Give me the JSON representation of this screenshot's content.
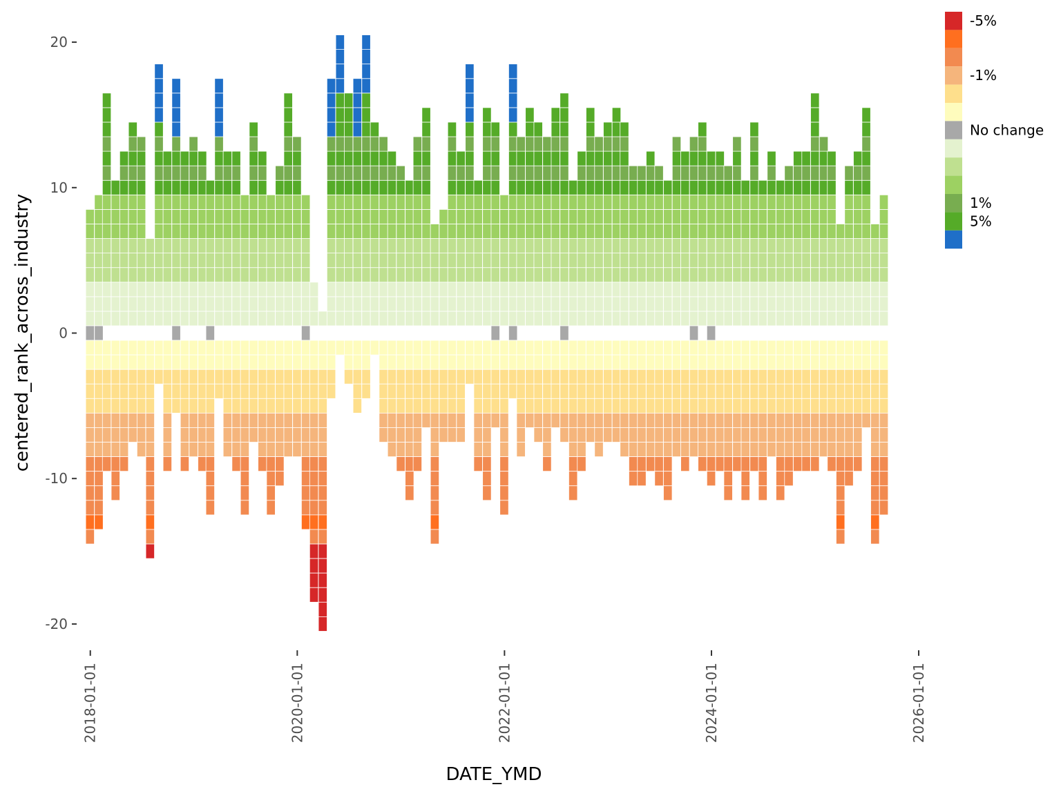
{
  "chart_data": {
    "type": "bar",
    "subtype": "stacked-tile-bar",
    "title": "",
    "xlabel": "DATE_YMD",
    "ylabel": "centered_rank_across_industry",
    "x_ticks": [
      "2018-01-01",
      "2020-01-01",
      "2022-01-01",
      "2024-01-01",
      "2026-01-01"
    ],
    "y_ticks": [
      20,
      10,
      0,
      -10,
      -20
    ],
    "xlim": [
      "2017-12-01",
      "2026-01-01"
    ],
    "ylim": [
      -21,
      21
    ],
    "grid": false,
    "legend": {
      "position": "right",
      "entries": [
        {
          "label": "-5%",
          "color": "#d62728"
        },
        {
          "label": "",
          "color": "#ff6f1f"
        },
        {
          "label": "",
          "color": "#f28a50"
        },
        {
          "label": "-1%",
          "color": "#f5b57c"
        },
        {
          "label": "",
          "color": "#fedf8c"
        },
        {
          "label": "",
          "color": "#fefcbd"
        },
        {
          "label": "No change",
          "color": "#a8a8a8"
        },
        {
          "label": "",
          "color": "#e4f2cf"
        },
        {
          "label": "",
          "color": "#bfe090"
        },
        {
          "label": "",
          "color": "#9dd162"
        },
        {
          "label": "1%",
          "color": "#78ad50"
        },
        {
          "label": "5%",
          "color": "#55ab28"
        },
        {
          "label": "",
          "color": "#1f6fc8"
        }
      ]
    },
    "series": [
      {
        "date": "2017-12-31",
        "top": 8,
        "bottom": -14,
        "zero": true
      },
      {
        "date": "2018-01-31",
        "top": 9,
        "bottom": -13,
        "zero": true
      },
      {
        "date": "2018-02-28",
        "top": 16,
        "bottom": -9,
        "zero": false
      },
      {
        "date": "2018-03-31",
        "top": 10,
        "bottom": -11,
        "zero": false
      },
      {
        "date": "2018-04-30",
        "top": 12,
        "bottom": -9,
        "zero": false
      },
      {
        "date": "2018-05-31",
        "top": 14,
        "bottom": -7,
        "zero": false
      },
      {
        "date": "2018-06-30",
        "top": 13,
        "bottom": -8,
        "zero": false
      },
      {
        "date": "2018-07-31",
        "top": 6,
        "bottom": -15,
        "zero": false
      },
      {
        "date": "2018-08-31",
        "top": 18,
        "bottom": -3,
        "zero": false
      },
      {
        "date": "2018-09-30",
        "top": 12,
        "bottom": -9,
        "zero": false
      },
      {
        "date": "2018-10-31",
        "top": 17,
        "bottom": -5,
        "zero": true
      },
      {
        "date": "2018-11-30",
        "top": 12,
        "bottom": -9,
        "zero": false
      },
      {
        "date": "2018-12-31",
        "top": 13,
        "bottom": -8,
        "zero": false
      },
      {
        "date": "2019-01-31",
        "top": 12,
        "bottom": -9,
        "zero": false
      },
      {
        "date": "2019-02-28",
        "top": 10,
        "bottom": -12,
        "zero": true
      },
      {
        "date": "2019-03-31",
        "top": 17,
        "bottom": -4,
        "zero": false
      },
      {
        "date": "2019-04-30",
        "top": 12,
        "bottom": -8,
        "zero": false
      },
      {
        "date": "2019-05-31",
        "top": 12,
        "bottom": -9,
        "zero": false
      },
      {
        "date": "2019-06-30",
        "top": 9,
        "bottom": -12,
        "zero": false
      },
      {
        "date": "2019-07-31",
        "top": 14,
        "bottom": -7,
        "zero": false
      },
      {
        "date": "2019-08-31",
        "top": 12,
        "bottom": -9,
        "zero": false
      },
      {
        "date": "2019-09-30",
        "top": 9,
        "bottom": -12,
        "zero": false
      },
      {
        "date": "2019-10-31",
        "top": 11,
        "bottom": -10,
        "zero": false
      },
      {
        "date": "2019-11-30",
        "top": 16,
        "bottom": -8,
        "zero": false
      },
      {
        "date": "2019-12-31",
        "top": 13,
        "bottom": -8,
        "zero": false
      },
      {
        "date": "2020-01-31",
        "top": 9,
        "bottom": -13,
        "zero": true
      },
      {
        "date": "2020-02-29",
        "top": 3,
        "bottom": -18,
        "zero": false
      },
      {
        "date": "2020-03-31",
        "top": 1,
        "bottom": -20,
        "zero": false
      },
      {
        "date": "2020-04-30",
        "top": 17,
        "bottom": -4,
        "zero": false
      },
      {
        "date": "2020-05-31",
        "top": 20,
        "bottom": -1,
        "zero": false
      },
      {
        "date": "2020-06-30",
        "top": 16,
        "bottom": -3,
        "zero": false
      },
      {
        "date": "2020-07-31",
        "top": 17,
        "bottom": -5,
        "zero": false
      },
      {
        "date": "2020-08-31",
        "top": 20,
        "bottom": -4,
        "zero": false
      },
      {
        "date": "2020-09-30",
        "top": 14,
        "bottom": -1,
        "zero": false
      },
      {
        "date": "2020-10-31",
        "top": 13,
        "bottom": -7,
        "zero": false
      },
      {
        "date": "2020-11-30",
        "top": 12,
        "bottom": -8,
        "zero": false
      },
      {
        "date": "2020-12-31",
        "top": 11,
        "bottom": -9,
        "zero": false
      },
      {
        "date": "2021-01-31",
        "top": 10,
        "bottom": -11,
        "zero": false
      },
      {
        "date": "2021-02-28",
        "top": 13,
        "bottom": -9,
        "zero": false
      },
      {
        "date": "2021-03-31",
        "top": 15,
        "bottom": -6,
        "zero": false
      },
      {
        "date": "2021-04-30",
        "top": 7,
        "bottom": -14,
        "zero": false
      },
      {
        "date": "2021-05-31",
        "top": 8,
        "bottom": -7,
        "zero": false
      },
      {
        "date": "2021-06-30",
        "top": 14,
        "bottom": -7,
        "zero": false
      },
      {
        "date": "2021-07-31",
        "top": 12,
        "bottom": -7,
        "zero": false
      },
      {
        "date": "2021-08-31",
        "top": 18,
        "bottom": -3,
        "zero": false
      },
      {
        "date": "2021-09-30",
        "top": 10,
        "bottom": -9,
        "zero": false
      },
      {
        "date": "2021-10-31",
        "top": 15,
        "bottom": -11,
        "zero": false
      },
      {
        "date": "2021-11-30",
        "top": 14,
        "bottom": -6,
        "zero": true
      },
      {
        "date": "2021-12-31",
        "top": 9,
        "bottom": -12,
        "zero": false
      },
      {
        "date": "2022-01-31",
        "top": 18,
        "bottom": -4,
        "zero": true
      },
      {
        "date": "2022-02-28",
        "top": 13,
        "bottom": -8,
        "zero": false
      },
      {
        "date": "2022-03-31",
        "top": 15,
        "bottom": -6,
        "zero": false
      },
      {
        "date": "2022-04-30",
        "top": 14,
        "bottom": -7,
        "zero": false
      },
      {
        "date": "2022-05-31",
        "top": 13,
        "bottom": -9,
        "zero": false
      },
      {
        "date": "2022-06-30",
        "top": 15,
        "bottom": -6,
        "zero": false
      },
      {
        "date": "2022-07-31",
        "top": 16,
        "bottom": -7,
        "zero": true
      },
      {
        "date": "2022-08-31",
        "top": 10,
        "bottom": -11,
        "zero": false
      },
      {
        "date": "2022-09-30",
        "top": 12,
        "bottom": -9,
        "zero": false
      },
      {
        "date": "2022-10-31",
        "top": 15,
        "bottom": -7,
        "zero": false
      },
      {
        "date": "2022-11-30",
        "top": 13,
        "bottom": -8,
        "zero": false
      },
      {
        "date": "2022-12-31",
        "top": 14,
        "bottom": -7,
        "zero": false
      },
      {
        "date": "2023-01-31",
        "top": 15,
        "bottom": -7,
        "zero": false
      },
      {
        "date": "2023-02-28",
        "top": 14,
        "bottom": -8,
        "zero": false
      },
      {
        "date": "2023-03-31",
        "top": 11,
        "bottom": -10,
        "zero": false
      },
      {
        "date": "2023-04-30",
        "top": 11,
        "bottom": -10,
        "zero": false
      },
      {
        "date": "2023-05-31",
        "top": 12,
        "bottom": -9,
        "zero": false
      },
      {
        "date": "2023-06-30",
        "top": 11,
        "bottom": -10,
        "zero": false
      },
      {
        "date": "2023-07-31",
        "top": 10,
        "bottom": -11,
        "zero": false
      },
      {
        "date": "2023-08-31",
        "top": 13,
        "bottom": -8,
        "zero": false
      },
      {
        "date": "2023-09-30",
        "top": 12,
        "bottom": -9,
        "zero": false
      },
      {
        "date": "2023-10-31",
        "top": 13,
        "bottom": -8,
        "zero": true
      },
      {
        "date": "2023-11-30",
        "top": 14,
        "bottom": -9,
        "zero": false
      },
      {
        "date": "2023-12-31",
        "top": 12,
        "bottom": -10,
        "zero": true
      },
      {
        "date": "2024-01-31",
        "top": 12,
        "bottom": -9,
        "zero": false
      },
      {
        "date": "2024-02-29",
        "top": 11,
        "bottom": -11,
        "zero": false
      },
      {
        "date": "2024-03-31",
        "top": 13,
        "bottom": -9,
        "zero": false
      },
      {
        "date": "2024-04-30",
        "top": 10,
        "bottom": -11,
        "zero": false
      },
      {
        "date": "2024-05-31",
        "top": 14,
        "bottom": -9,
        "zero": false
      },
      {
        "date": "2024-06-30",
        "top": 10,
        "bottom": -11,
        "zero": false
      },
      {
        "date": "2024-07-31",
        "top": 12,
        "bottom": -8,
        "zero": false
      },
      {
        "date": "2024-08-31",
        "top": 10,
        "bottom": -11,
        "zero": false
      },
      {
        "date": "2024-09-30",
        "top": 11,
        "bottom": -10,
        "zero": false
      },
      {
        "date": "2024-10-31",
        "top": 12,
        "bottom": -9,
        "zero": false
      },
      {
        "date": "2024-11-30",
        "top": 12,
        "bottom": -9,
        "zero": false
      },
      {
        "date": "2024-12-31",
        "top": 16,
        "bottom": -9,
        "zero": false
      },
      {
        "date": "2025-01-31",
        "top": 13,
        "bottom": -8,
        "zero": false
      },
      {
        "date": "2025-02-28",
        "top": 12,
        "bottom": -9,
        "zero": false
      },
      {
        "date": "2025-03-31",
        "top": 7,
        "bottom": -14,
        "zero": false
      },
      {
        "date": "2025-04-30",
        "top": 11,
        "bottom": -10,
        "zero": false
      },
      {
        "date": "2025-05-31",
        "top": 12,
        "bottom": -9,
        "zero": false
      },
      {
        "date": "2025-06-30",
        "top": 15,
        "bottom": -6,
        "zero": false
      },
      {
        "date": "2025-07-31",
        "top": 7,
        "bottom": -14,
        "zero": false
      },
      {
        "date": "2025-08-31",
        "top": 9,
        "bottom": -12,
        "zero": false
      }
    ]
  }
}
